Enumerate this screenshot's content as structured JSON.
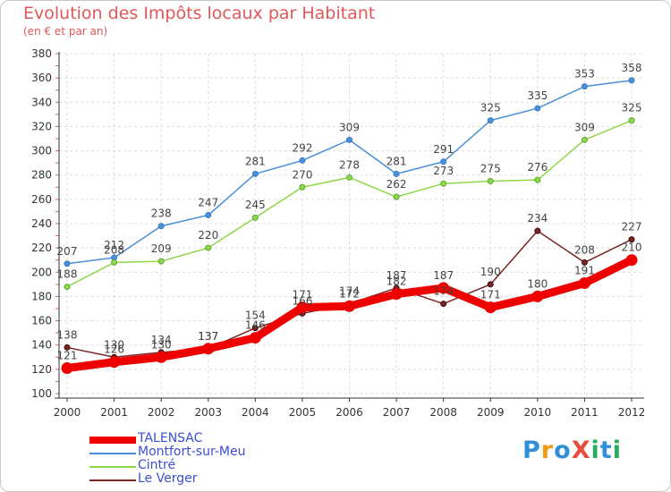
{
  "title": "Evolution des Impôts locaux par Habitant",
  "subtitle": "(en € et par an)",
  "logo": {
    "text": "ProXiti",
    "letters": [
      "P",
      "r",
      "o",
      "X",
      "i",
      "t",
      "i"
    ],
    "colors": [
      "#2f8fd8",
      "#f39c12",
      "#2f8fd8",
      "#e74c3c",
      "#27ae60",
      "#2f8fd8",
      "#27ae60"
    ]
  },
  "chart_data": {
    "type": "line",
    "x": [
      "2000",
      "2001",
      "2002",
      "2003",
      "2004",
      "2005",
      "2006",
      "2007",
      "2008",
      "2009",
      "2010",
      "2011",
      "2012"
    ],
    "ylim": [
      100,
      380
    ],
    "yticks": [
      "100",
      "120",
      "140",
      "160",
      "180",
      "200",
      "220",
      "240",
      "260",
      "280",
      "300",
      "320",
      "340",
      "360",
      "380"
    ],
    "grid": true,
    "legend_position": "bottom-left",
    "series": [
      {
        "name": "Montfort-sur-Meu",
        "color": "#4a90d9",
        "labels": [
          "207",
          "212",
          "238",
          "247",
          "281",
          "292",
          "309",
          "281",
          "291",
          "325",
          "335",
          "353",
          "358"
        ],
        "values": [
          207,
          212,
          238,
          247,
          281,
          292,
          309,
          281,
          291,
          325,
          335,
          353,
          358
        ]
      },
      {
        "name": "Cintré",
        "color": "#8ed84a",
        "labels": [
          "188",
          "208",
          "209",
          "220",
          "245",
          "270",
          "278",
          "262",
          "273",
          "275",
          "276",
          "309",
          "325"
        ],
        "values": [
          188,
          208,
          209,
          220,
          245,
          270,
          278,
          262,
          273,
          275,
          276,
          309,
          325
        ]
      },
      {
        "name": "Le Verger",
        "color": "#7a2424",
        "labels": [
          "138",
          "130",
          "134",
          "137",
          "154",
          "166",
          "174",
          "187",
          "174",
          "190",
          "234",
          "208",
          "227"
        ],
        "values": [
          138,
          130,
          134,
          137,
          154,
          166,
          174,
          187,
          174,
          190,
          234,
          208,
          227
        ]
      },
      {
        "name": "TALENSAC",
        "color": "#ee0000",
        "labels": [
          "121",
          "126",
          "130",
          "137",
          "146",
          "171",
          "172",
          "182",
          "187",
          "171",
          "180",
          "191",
          "210"
        ],
        "values": [
          121,
          126,
          130,
          137,
          146,
          171,
          172,
          182,
          187,
          171,
          180,
          191,
          210
        ]
      }
    ]
  }
}
